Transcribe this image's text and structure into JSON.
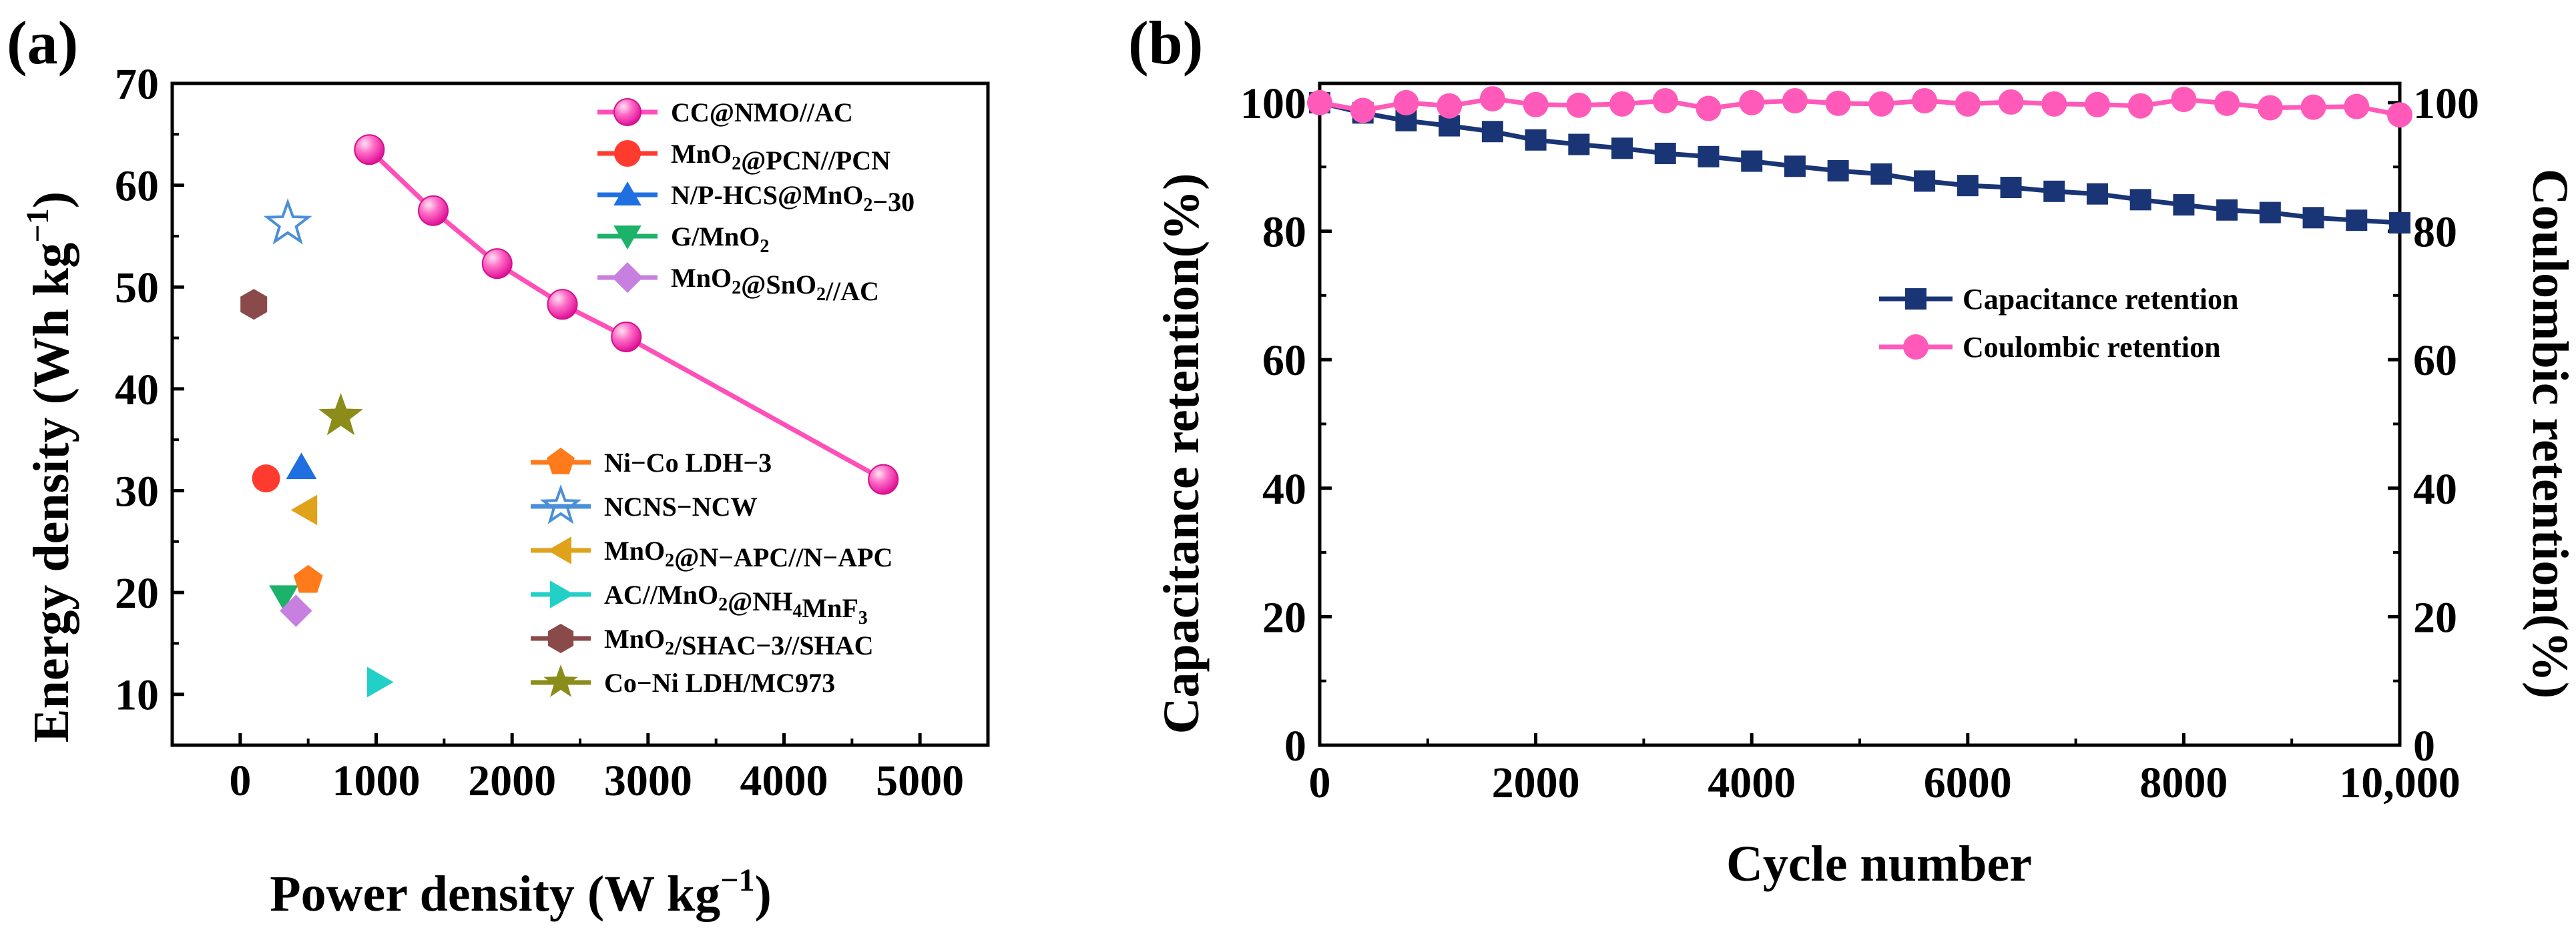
{
  "panel_a": {
    "label": "(a)",
    "xlabel": "Power density (W kg",
    "xlabel_sup": "−1",
    "xlabel_end": ")",
    "ylabel": "Energy density (Wh kg",
    "ylabel_sup": "−1",
    "ylabel_end": ")"
  },
  "panel_b": {
    "label": "(b)",
    "xlabel": "Cycle number",
    "ylabel_left": "Capacitance retention(%)",
    "ylabel_right": "Coulombic retention(%)"
  },
  "chart_data": [
    {
      "type": "scatter",
      "title": "",
      "xlabel": "Power density (W kg−1)",
      "ylabel": "Energy density (Wh kg−1)",
      "xlim": [
        -500,
        5500
      ],
      "ylim": [
        5,
        70
      ],
      "x_ticks": [
        0,
        1000,
        2000,
        3000,
        4000,
        5000
      ],
      "y_ticks": [
        10,
        20,
        30,
        40,
        50,
        60,
        70
      ],
      "series": [
        {
          "name": "CC@NMO//AC",
          "label_parts": [
            [
              "CC@NMO//AC",
              ""
            ]
          ],
          "marker": "sphere",
          "color": "#ff4fb8",
          "line": true,
          "x": [
            950,
            1420,
            1890,
            2370,
            2840,
            4730
          ],
          "y": [
            63.5,
            57.5,
            52.3,
            48.3,
            45.1,
            31.1
          ]
        },
        {
          "name": "MnO2@PCN//PCN",
          "label_parts": [
            [
              "MnO",
              ""
            ],
            [
              "2",
              "sub"
            ],
            [
              "@PCN//PCN",
              ""
            ]
          ],
          "marker": "circle",
          "color": "#ff3b30",
          "line": false,
          "x": [
            190
          ],
          "y": [
            31.2
          ]
        },
        {
          "name": "N/P-HCS@MnO2-30",
          "label_parts": [
            [
              "N/P-HCS@MnO",
              ""
            ],
            [
              "2",
              "sub"
            ],
            [
              "−30",
              ""
            ]
          ],
          "marker": "triangle-up",
          "color": "#1f6fe0",
          "line": false,
          "x": [
            450
          ],
          "y": [
            32.3
          ]
        },
        {
          "name": "G/MnO2",
          "label_parts": [
            [
              "G/MnO",
              ""
            ],
            [
              "2",
              "sub"
            ]
          ],
          "marker": "triangle-down",
          "color": "#1db26a",
          "line": false,
          "x": [
            320
          ],
          "y": [
            19.6
          ]
        },
        {
          "name": "MnO2@SnO2//AC",
          "label_parts": [
            [
              "MnO",
              ""
            ],
            [
              "2",
              "sub"
            ],
            [
              "@SnO",
              ""
            ],
            [
              "2",
              "sub"
            ],
            [
              "//AC",
              ""
            ]
          ],
          "marker": "diamond",
          "color": "#c77fe0",
          "line": false,
          "x": [
            410
          ],
          "y": [
            18.2
          ]
        },
        {
          "name": "Ni-Co LDH-3",
          "label_parts": [
            [
              "Ni−Co LDH−3",
              ""
            ]
          ],
          "marker": "pentagon",
          "color": "#ff7a1a",
          "line": false,
          "x": [
            500
          ],
          "y": [
            21.2
          ]
        },
        {
          "name": "NCNS-NCW",
          "label_parts": [
            [
              "NCNS−NCW",
              ""
            ]
          ],
          "marker": "star-open",
          "color": "#4a8fd8",
          "line": false,
          "x": [
            350
          ],
          "y": [
            56.2
          ]
        },
        {
          "name": "MnO2@N-APC//N-APC",
          "label_parts": [
            [
              "MnO",
              ""
            ],
            [
              "2",
              "sub"
            ],
            [
              "@N−APC//N−APC",
              ""
            ]
          ],
          "marker": "triangle-left",
          "color": "#e0a21a",
          "line": false,
          "x": [
            480
          ],
          "y": [
            28.1
          ]
        },
        {
          "name": "AC//MnO2@NH4MnF3",
          "label_parts": [
            [
              "AC//MnO",
              ""
            ],
            [
              "2",
              "sub"
            ],
            [
              "@NH",
              ""
            ],
            [
              "4",
              "sub"
            ],
            [
              "MnF",
              ""
            ],
            [
              "3",
              "sub"
            ]
          ],
          "marker": "triangle-right",
          "color": "#22d0c8",
          "line": false,
          "x": [
            1020
          ],
          "y": [
            11.2
          ]
        },
        {
          "name": "MnO2/SHAC-3//SHAC",
          "label_parts": [
            [
              "MnO",
              ""
            ],
            [
              "2",
              "sub"
            ],
            [
              "/SHAC−3//SHAC",
              ""
            ]
          ],
          "marker": "hexagon",
          "color": "#8b4a4a",
          "line": false,
          "x": [
            100
          ],
          "y": [
            48.3
          ]
        },
        {
          "name": "Co-Ni LDH/MC973",
          "label_parts": [
            [
              "Co−Ni LDH/MC973",
              ""
            ]
          ],
          "marker": "star",
          "color": "#8c8c1a",
          "line": false,
          "x": [
            740
          ],
          "y": [
            37.3
          ]
        }
      ],
      "legend": "upper-right, two groups"
    },
    {
      "type": "line",
      "title": "",
      "xlabel": "Cycle number",
      "ylabel": "Capacitance retention(%)",
      "ylabel_right": "Coulombic retention(%)",
      "xlim": [
        0,
        10000
      ],
      "ylim": [
        0,
        103
      ],
      "x_ticks": [
        0,
        2000,
        4000,
        6000,
        8000,
        10000
      ],
      "x_tick_labels": [
        "0",
        "2000",
        "4000",
        "6000",
        "8000",
        "10,000"
      ],
      "y_ticks": [
        0,
        20,
        40,
        60,
        80,
        100
      ],
      "series": [
        {
          "name": "Capacitance retention",
          "marker": "square",
          "color": "#1a3575",
          "x": [
            0,
            400,
            800,
            1200,
            1600,
            2000,
            2400,
            2800,
            3200,
            3600,
            4000,
            4400,
            4800,
            5200,
            5600,
            6000,
            6400,
            6800,
            7200,
            7600,
            8000,
            8400,
            8800,
            9200,
            9600,
            10000
          ],
          "y": [
            100,
            98.4,
            97.2,
            96.4,
            95.5,
            94.2,
            93.5,
            92.9,
            92.1,
            91.6,
            90.9,
            90.1,
            89.4,
            88.9,
            87.8,
            87.1,
            86.8,
            86.2,
            85.8,
            84.9,
            84.1,
            83.3,
            82.9,
            82.1,
            81.7,
            81.3
          ]
        },
        {
          "name": "Coulombic retention",
          "marker": "circle",
          "color": "#ff5aba",
          "x": [
            0,
            400,
            800,
            1200,
            1600,
            2000,
            2400,
            2800,
            3200,
            3600,
            4000,
            4400,
            4800,
            5200,
            5600,
            6000,
            6400,
            6800,
            7200,
            7600,
            8000,
            8400,
            8800,
            9200,
            9600,
            10000
          ],
          "y": [
            100,
            98.8,
            100,
            99.5,
            100.6,
            99.7,
            99.6,
            99.8,
            100.3,
            99.1,
            100,
            100.3,
            99.9,
            99.8,
            100.3,
            99.8,
            100.1,
            99.8,
            99.7,
            99.5,
            100.5,
            99.9,
            99.2,
            99.3,
            99.4,
            98.1
          ]
        }
      ],
      "legend": "center-right"
    }
  ]
}
